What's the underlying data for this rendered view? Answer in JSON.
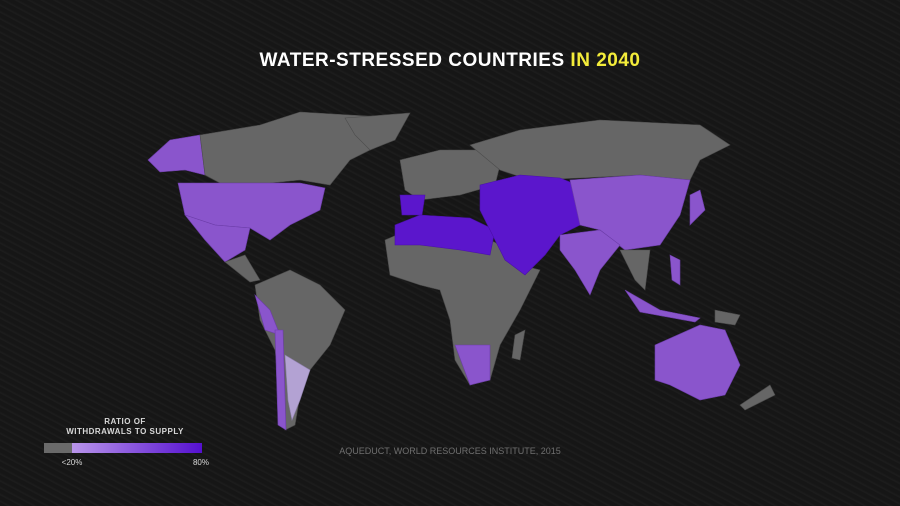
{
  "header": {
    "title": "WATER-STRESSED COUNTRIES",
    "title_highlight": "IN 2040"
  },
  "legend": {
    "title_lines": [
      "RATIO OF",
      "WITHDRAWALS TO SUPPLY"
    ],
    "min_label": "<20%",
    "max_label": "80%"
  },
  "source": "AQUEDUCT, WORLD RESOURCES INSTITUTE, 2015"
}
